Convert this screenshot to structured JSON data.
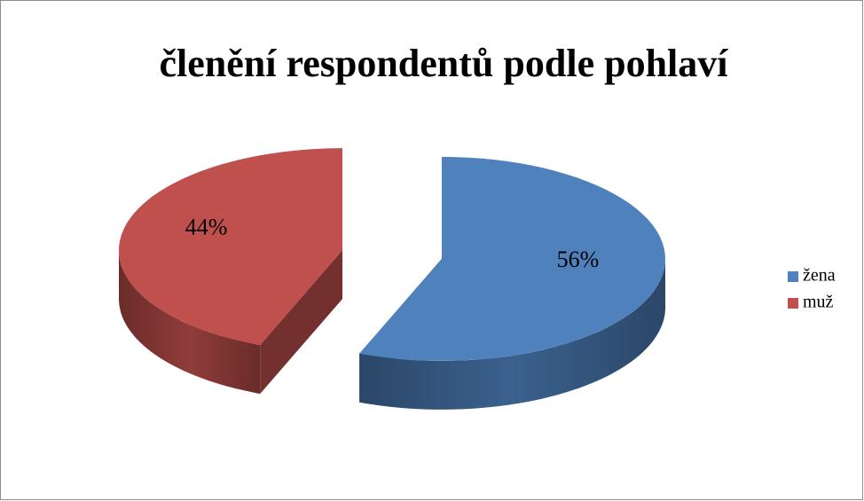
{
  "chart_data": {
    "type": "pie",
    "title": "členění respondentů podle pohlaví",
    "categories": [
      "žena",
      "muž"
    ],
    "values": [
      56,
      44
    ],
    "value_labels": [
      "56%",
      "44%"
    ],
    "colors": [
      "#4f81bd",
      "#c0504d"
    ],
    "legend": "right"
  }
}
